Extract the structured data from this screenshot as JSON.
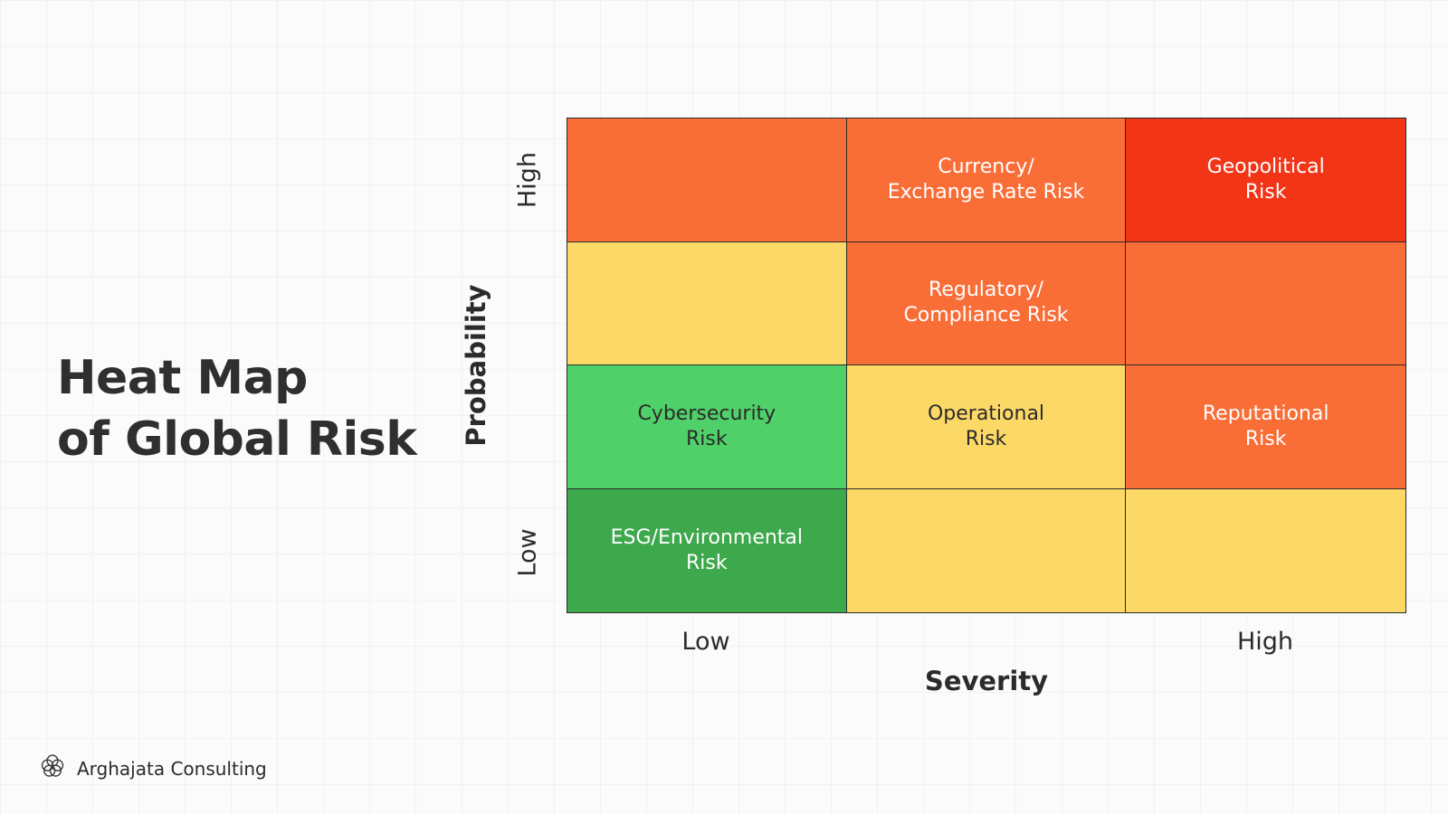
{
  "title_lines": [
    "Heat Map",
    "of Global Risk"
  ],
  "brand": {
    "name": "Arghajata Consulting",
    "icon": "flower-logo-icon"
  },
  "chart_data": {
    "type": "heatmap",
    "xlabel": "Severity",
    "ylabel": "Probability",
    "x_tick_labels": [
      "Low",
      "High"
    ],
    "y_tick_labels": [
      "Low",
      "High"
    ],
    "columns": 3,
    "rows": 4,
    "rows_top_to_bottom": [
      [
        {
          "label": "",
          "color": "#f96d37"
        },
        {
          "label": "Currency/\nExchange Rate Risk",
          "color": "#f96d37"
        },
        {
          "label": "Geopolitical\nRisk",
          "color": "#f23417"
        }
      ],
      [
        {
          "label": "",
          "color": "#fcd967"
        },
        {
          "label": "Regulatory/\nCompliance Risk",
          "color": "#f96d37"
        },
        {
          "label": "",
          "color": "#f96d37"
        }
      ],
      [
        {
          "label": "Cybersecurity\nRisk",
          "color": "#4fd068"
        },
        {
          "label": "Operational\nRisk",
          "color": "#fcd967"
        },
        {
          "label": "Reputational\nRisk",
          "color": "#f96d37"
        }
      ],
      [
        {
          "label": "ESG/Environmental\nRisk",
          "color": "#3ea84c"
        },
        {
          "label": "",
          "color": "#fcd967"
        },
        {
          "label": "",
          "color": "#fcd967"
        }
      ]
    ],
    "text_colors": {
      "dark": "#2b2b2b",
      "light": "#ffffff"
    }
  }
}
